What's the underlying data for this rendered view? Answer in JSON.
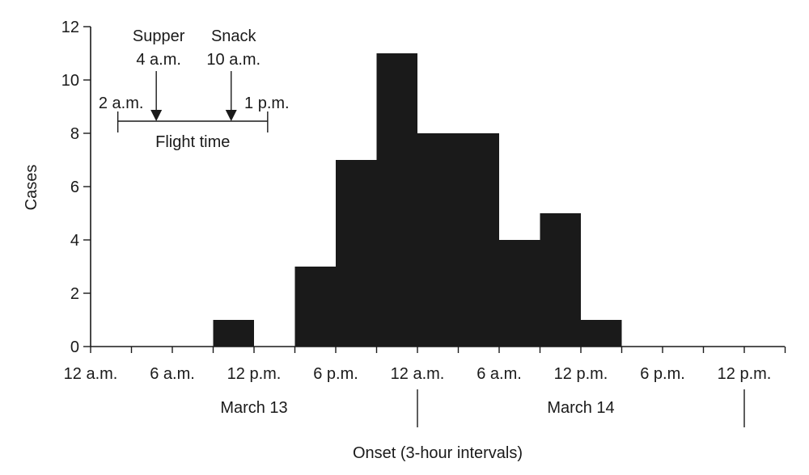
{
  "chart_data": {
    "type": "bar",
    "title": "",
    "xlabel": "Onset (3-hour intervals)",
    "ylabel": "Cases",
    "ylim": [
      0,
      12
    ],
    "yticks": [
      0,
      2,
      4,
      6,
      8,
      10,
      12
    ],
    "xlim_hours": [
      0,
      51
    ],
    "x_tick_labels": [
      "12 a.m.",
      "6 a.m.",
      "12 p.m.",
      "6 p.m.",
      "12 a.m.",
      "6 a.m.",
      "12 p.m.",
      "6 p.m.",
      "12 p.m."
    ],
    "date_labels": [
      "March 13",
      "March 14"
    ],
    "bins": [
      {
        "start_hour": 9,
        "cases": 1
      },
      {
        "start_hour": 15,
        "cases": 3
      },
      {
        "start_hour": 18,
        "cases": 7
      },
      {
        "start_hour": 21,
        "cases": 11
      },
      {
        "start_hour": 24,
        "cases": 8
      },
      {
        "start_hour": 27,
        "cases": 8
      },
      {
        "start_hour": 30,
        "cases": 4
      },
      {
        "start_hour": 33,
        "cases": 5
      },
      {
        "start_hour": 36,
        "cases": 1
      }
    ],
    "bin_width_hours": 3,
    "annotations": {
      "flight": {
        "label": "Flight time",
        "start_label": "2 a.m.",
        "end_label": "1 p.m.",
        "start_hour": 2,
        "end_hour": 13
      },
      "meals": [
        {
          "line1": "Supper",
          "line2": "4 a.m.",
          "hour": 5
        },
        {
          "line1": "Snack",
          "line2": "10 a.m.",
          "hour": 10.5
        }
      ]
    },
    "grid": false,
    "legend": "none"
  }
}
